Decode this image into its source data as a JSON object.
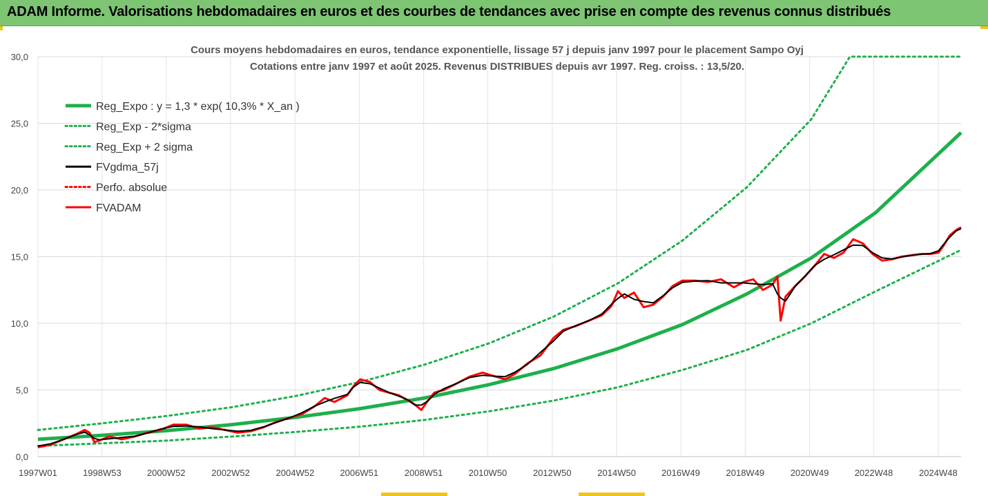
{
  "banner": {
    "title": "ADAM Informe. Valorisations hebdomadaires en euros et des courbes de tendances avec prise en compte des revenus connus distribués"
  },
  "colors": {
    "banner_bg": "#7dc473",
    "trend": "#1db04b",
    "price": "#ff0000",
    "smooth": "#000000",
    "accent": "#f2c418"
  },
  "chart_data": {
    "type": "line",
    "title_line1": "Cours moyens hebdomadaires en euros, tendance exponentielle, lissage 57 j depuis janv 1997 pour le placement Sampo Oyj",
    "title_line2": "Cotations entre janv 1997 et août 2025. Revenus DISTRIBUES depuis avr 1997. Reg. croiss. : 13,5/20.",
    "ylim": [
      0,
      30
    ],
    "y_ticks": [
      "0,0",
      "5,0",
      "10,0",
      "15,0",
      "20,0",
      "25,0",
      "30,0"
    ],
    "y_tick_values": [
      0,
      5,
      10,
      15,
      20,
      25,
      30
    ],
    "xlim": [
      1997.0,
      2025.65
    ],
    "x_ticks": [
      "1997W01",
      "1998W53",
      "2000W52",
      "2002W52",
      "2004W52",
      "2006W51",
      "2008W51",
      "2010W50",
      "2012W50",
      "2014W50",
      "2016W49",
      "2018W49",
      "2020W49",
      "2022W48",
      "2024W48"
    ],
    "x_tick_values": [
      1997.0,
      1998.99,
      2000.98,
      2002.98,
      2004.98,
      2006.97,
      2008.97,
      2010.96,
      2012.96,
      2014.96,
      2016.95,
      2018.95,
      2020.95,
      2022.94,
      2024.94
    ],
    "grid": true,
    "legend_position": "top-left",
    "series": [
      {
        "name": "Reg_Expo : y = 1,3 * exp( 10,3% *  X_an )",
        "style": "solid-thick",
        "color": "#1db04b",
        "x": [
          1997,
          1999,
          2001,
          2003,
          2005,
          2007,
          2009,
          2011,
          2013,
          2015,
          2017,
          2019,
          2021,
          2023,
          2025.65
        ],
        "y": [
          1.3,
          1.6,
          1.95,
          2.4,
          2.95,
          3.6,
          4.4,
          5.4,
          6.6,
          8.1,
          9.9,
          12.2,
          14.9,
          18.3,
          24.3
        ]
      },
      {
        "name": "Reg_Exp - 2*sigma",
        "style": "dotted",
        "color": "#1db04b",
        "x": [
          1997,
          1999,
          2001,
          2003,
          2005,
          2007,
          2009,
          2011,
          2013,
          2015,
          2017,
          2019,
          2021,
          2023,
          2025.65
        ],
        "y": [
          0.8,
          1.0,
          1.2,
          1.5,
          1.85,
          2.25,
          2.75,
          3.4,
          4.2,
          5.2,
          6.5,
          8.0,
          10.0,
          12.4,
          15.5
        ]
      },
      {
        "name": "Reg_Exp + 2 sigma",
        "style": "dotted",
        "color": "#1db04b",
        "x": [
          1997,
          1999,
          2001,
          2003,
          2005,
          2007,
          2009,
          2011,
          2013,
          2015,
          2017,
          2019,
          2021,
          2022.2,
          2023,
          2025.65
        ],
        "y": [
          2.0,
          2.5,
          3.05,
          3.7,
          4.55,
          5.6,
          6.9,
          8.5,
          10.5,
          13.0,
          16.2,
          20.2,
          25.3,
          30.0,
          30.0,
          30.0
        ]
      },
      {
        "name": "FVgdma_57j",
        "style": "solid",
        "color": "#000000",
        "smooth_of": "FVADAM"
      },
      {
        "name": "Perfo. absolue",
        "style": "dotted",
        "color": "#ff0000",
        "x": [],
        "y": []
      },
      {
        "name": "FVADAM",
        "style": "solid",
        "color": "#ff0000",
        "x": [
          1997.0,
          1997.4,
          1997.8,
          1998.2,
          1998.45,
          1998.6,
          1998.75,
          1998.9,
          1999.2,
          1999.6,
          2000.0,
          2000.4,
          2000.8,
          2001.2,
          2001.6,
          2002.0,
          2002.4,
          2002.8,
          2003.2,
          2003.6,
          2004.0,
          2004.4,
          2004.8,
          2005.2,
          2005.6,
          2005.9,
          2006.2,
          2006.6,
          2006.8,
          2007.0,
          2007.3,
          2007.6,
          2007.9,
          2008.2,
          2008.5,
          2008.7,
          2008.9,
          2009.1,
          2009.3,
          2009.6,
          2010.0,
          2010.4,
          2010.8,
          2011.2,
          2011.5,
          2011.8,
          2012.2,
          2012.6,
          2013.0,
          2013.3,
          2013.7,
          2014.1,
          2014.5,
          2014.8,
          2015.0,
          2015.2,
          2015.5,
          2015.8,
          2016.1,
          2016.4,
          2016.7,
          2017.0,
          2017.4,
          2017.8,
          2018.2,
          2018.6,
          2018.9,
          2019.2,
          2019.5,
          2019.8,
          2019.95,
          2020.05,
          2020.2,
          2020.5,
          2020.8,
          2021.1,
          2021.4,
          2021.7,
          2022.0,
          2022.3,
          2022.6,
          2022.9,
          2023.2,
          2023.5,
          2023.8,
          2024.1,
          2024.4,
          2024.7,
          2024.95,
          2025.1,
          2025.3,
          2025.5,
          2025.65
        ],
        "y": [
          0.7,
          0.9,
          1.3,
          1.7,
          2.0,
          1.8,
          1.1,
          1.2,
          1.5,
          1.3,
          1.5,
          1.8,
          2.0,
          2.4,
          2.4,
          2.1,
          2.2,
          2.0,
          1.8,
          1.9,
          2.2,
          2.6,
          2.9,
          3.2,
          3.8,
          4.4,
          4.1,
          4.6,
          5.3,
          5.8,
          5.6,
          5.0,
          4.8,
          4.6,
          4.2,
          3.9,
          3.5,
          4.2,
          4.8,
          5.0,
          5.5,
          6.0,
          6.3,
          6.0,
          5.8,
          6.2,
          7.0,
          7.6,
          8.9,
          9.5,
          9.8,
          10.2,
          10.6,
          11.3,
          12.4,
          11.9,
          12.3,
          11.2,
          11.4,
          12.0,
          12.8,
          13.2,
          13.2,
          13.1,
          13.3,
          12.7,
          13.1,
          13.3,
          12.5,
          12.9,
          13.5,
          10.2,
          12.0,
          12.8,
          13.5,
          14.3,
          15.2,
          14.9,
          15.3,
          16.3,
          16.0,
          15.2,
          14.7,
          14.8,
          15.0,
          15.1,
          15.2,
          15.2,
          15.3,
          15.8,
          16.6,
          17.0,
          17.2
        ]
      }
    ]
  }
}
